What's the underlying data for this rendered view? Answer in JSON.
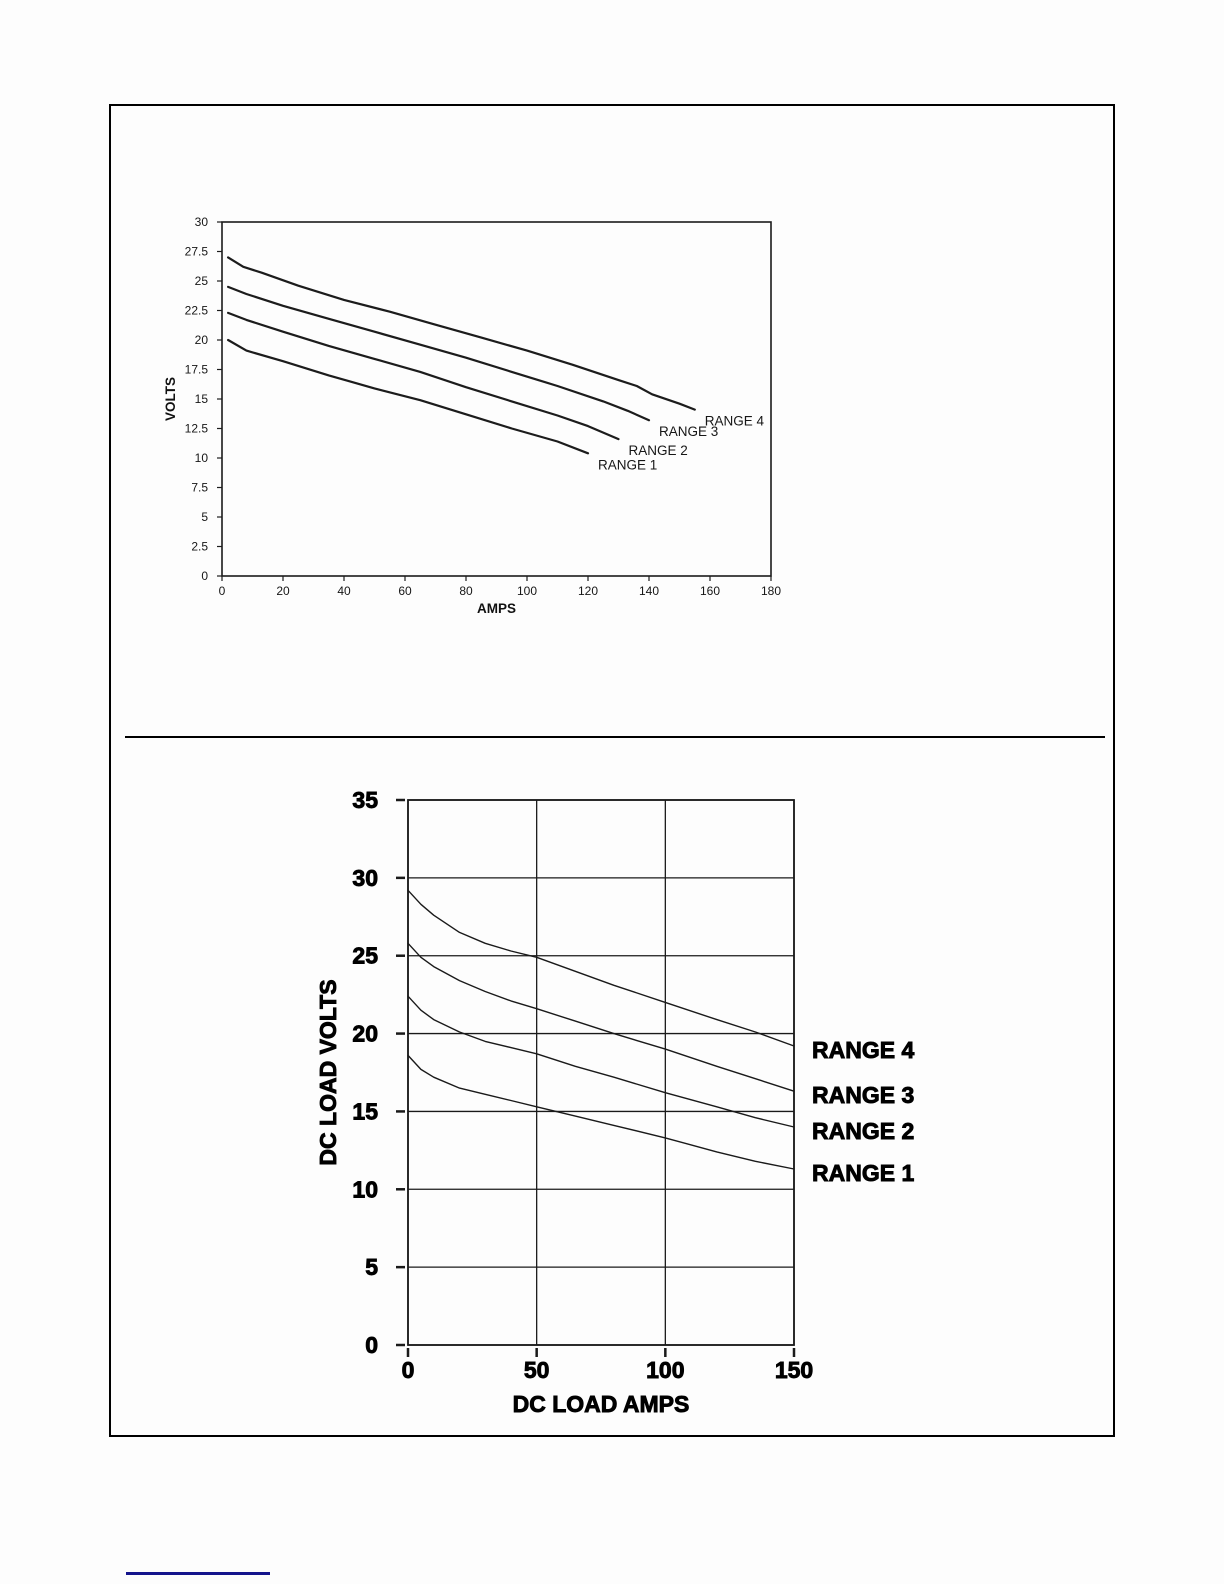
{
  "chart_data": [
    {
      "id": "volt-amp-curves-top",
      "type": "line",
      "title": "",
      "xlabel": "AMPS",
      "ylabel": "VOLTS",
      "xlim": [
        0,
        180
      ],
      "ylim": [
        0,
        30
      ],
      "xticks": [
        0,
        20,
        40,
        60,
        80,
        100,
        120,
        140,
        160,
        180
      ],
      "yticks": [
        0,
        2.5,
        5,
        7.5,
        10,
        12.5,
        15,
        17.5,
        20,
        22.5,
        25,
        27.5,
        30
      ],
      "grid": false,
      "legend_position": "curve-ends",
      "line_color": "#1c1c1c",
      "series": [
        {
          "name": "RANGE 4",
          "points": [
            [
              2,
              27.0
            ],
            [
              7,
              26.2
            ],
            [
              13,
              25.7
            ],
            [
              25,
              24.6
            ],
            [
              40,
              23.4
            ],
            [
              55,
              22.4
            ],
            [
              70,
              21.3
            ],
            [
              85,
              20.2
            ],
            [
              100,
              19.1
            ],
            [
              115,
              17.9
            ],
            [
              130,
              16.6
            ],
            [
              136,
              16.1
            ],
            [
              141,
              15.4
            ],
            [
              150,
              14.6
            ],
            [
              155,
              14.1
            ]
          ]
        },
        {
          "name": "RANGE 3",
          "points": [
            [
              2,
              24.5
            ],
            [
              8,
              23.9
            ],
            [
              20,
              22.9
            ],
            [
              35,
              21.8
            ],
            [
              50,
              20.7
            ],
            [
              65,
              19.6
            ],
            [
              80,
              18.5
            ],
            [
              95,
              17.3
            ],
            [
              110,
              16.1
            ],
            [
              125,
              14.8
            ],
            [
              133,
              14.0
            ],
            [
              140,
              13.2
            ]
          ]
        },
        {
          "name": "RANGE 2",
          "points": [
            [
              2,
              22.3
            ],
            [
              8,
              21.7
            ],
            [
              20,
              20.7
            ],
            [
              35,
              19.5
            ],
            [
              50,
              18.4
            ],
            [
              65,
              17.3
            ],
            [
              80,
              16.0
            ],
            [
              95,
              14.8
            ],
            [
              110,
              13.6
            ],
            [
              120,
              12.7
            ],
            [
              130,
              11.6
            ]
          ]
        },
        {
          "name": "RANGE 1",
          "points": [
            [
              2,
              20.0
            ],
            [
              8,
              19.1
            ],
            [
              20,
              18.2
            ],
            [
              35,
              17.0
            ],
            [
              50,
              15.9
            ],
            [
              65,
              14.9
            ],
            [
              80,
              13.7
            ],
            [
              95,
              12.5
            ],
            [
              110,
              11.4
            ],
            [
              120,
              10.4
            ]
          ]
        }
      ]
    },
    {
      "id": "dc-load-curves-bottom",
      "type": "line",
      "title": "",
      "xlabel": "DC LOAD AMPS",
      "ylabel": "DC LOAD VOLTS",
      "xlim": [
        0,
        150
      ],
      "ylim": [
        0,
        35
      ],
      "xticks": [
        0,
        50,
        100,
        150
      ],
      "yticks": [
        0,
        5,
        10,
        15,
        20,
        25,
        30,
        35
      ],
      "grid": true,
      "legend_position": "right-of-plot",
      "line_color": "#1a1a1a",
      "series": [
        {
          "name": "RANGE 4",
          "points": [
            [
              0,
              29.2
            ],
            [
              5,
              28.3
            ],
            [
              10,
              27.6
            ],
            [
              20,
              26.5
            ],
            [
              30,
              25.8
            ],
            [
              40,
              25.3
            ],
            [
              50,
              24.9
            ],
            [
              65,
              24.0
            ],
            [
              80,
              23.1
            ],
            [
              100,
              22.0
            ],
            [
              120,
              20.9
            ],
            [
              135,
              20.1
            ],
            [
              150,
              19.2
            ]
          ]
        },
        {
          "name": "RANGE 3",
          "points": [
            [
              0,
              25.8
            ],
            [
              5,
              24.9
            ],
            [
              10,
              24.3
            ],
            [
              20,
              23.4
            ],
            [
              30,
              22.7
            ],
            [
              40,
              22.1
            ],
            [
              50,
              21.6
            ],
            [
              65,
              20.8
            ],
            [
              80,
              20.0
            ],
            [
              100,
              19.0
            ],
            [
              120,
              17.9
            ],
            [
              135,
              17.1
            ],
            [
              150,
              16.3
            ]
          ]
        },
        {
          "name": "RANGE 2",
          "points": [
            [
              0,
              22.4
            ],
            [
              5,
              21.5
            ],
            [
              10,
              20.9
            ],
            [
              20,
              20.1
            ],
            [
              30,
              19.5
            ],
            [
              40,
              19.1
            ],
            [
              50,
              18.7
            ],
            [
              65,
              17.9
            ],
            [
              80,
              17.2
            ],
            [
              100,
              16.2
            ],
            [
              120,
              15.3
            ],
            [
              135,
              14.6
            ],
            [
              150,
              14.0
            ]
          ]
        },
        {
          "name": "RANGE 1",
          "points": [
            [
              0,
              18.6
            ],
            [
              5,
              17.7
            ],
            [
              10,
              17.2
            ],
            [
              20,
              16.5
            ],
            [
              30,
              16.1
            ],
            [
              40,
              15.7
            ],
            [
              50,
              15.3
            ],
            [
              65,
              14.7
            ],
            [
              80,
              14.1
            ],
            [
              100,
              13.3
            ],
            [
              120,
              12.4
            ],
            [
              135,
              11.8
            ],
            [
              150,
              11.3
            ]
          ]
        }
      ]
    }
  ],
  "footer": {
    "rule_color": "#14148C"
  }
}
